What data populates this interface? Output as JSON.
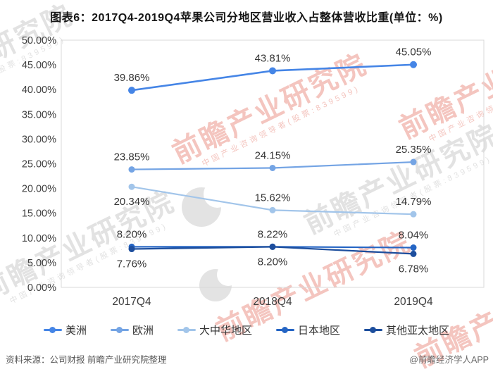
{
  "page": {
    "footer_left": "资料来源：公司财报 前瞻产业研究院整理",
    "footer_right": "@前瞻经济学人APP"
  },
  "watermark": {
    "main": "前瞻产业研究院",
    "sub": "中国产业咨询领导者(股票:839599)"
  },
  "chart_data": {
    "type": "line",
    "title": "图表6：2017Q4-2019Q4苹果公司分地区营业收入占整体营收比重(单位：%)",
    "x_categories": [
      "2017Q4",
      "2018Q4",
      "2019Q4"
    ],
    "y_axis": {
      "min": 0,
      "max": 50,
      "ticks": [
        "50.00%",
        "45.00%",
        "40.00%",
        "35.00%",
        "30.00%",
        "25.00%",
        "20.00%",
        "15.00%",
        "10.00%",
        "5.00%",
        "0.00%"
      ]
    },
    "grid": false,
    "legend_position": "bottom",
    "plot_border_color": "#d8d8d8",
    "series": [
      {
        "name": "美洲",
        "color": "#4585e6",
        "values": [
          39.86,
          43.81,
          45.05
        ],
        "labels": [
          "39.86%",
          "43.81%",
          "45.05%"
        ],
        "label_side": [
          "above",
          "above",
          "above"
        ]
      },
      {
        "name": "欧洲",
        "color": "#74a4e4",
        "values": [
          23.85,
          24.15,
          25.35
        ],
        "labels": [
          "23.85%",
          "24.15%",
          "25.35%"
        ],
        "label_side": [
          "above",
          "above",
          "above"
        ]
      },
      {
        "name": "大中华地区",
        "color": "#a2c5ea",
        "values": [
          20.34,
          15.62,
          14.79
        ],
        "labels": [
          "20.34%",
          "15.62%",
          "14.79%"
        ],
        "label_side": [
          "below",
          "above",
          "above"
        ]
      },
      {
        "name": "日本地区",
        "color": "#2565c4",
        "values": [
          8.2,
          8.22,
          8.04
        ],
        "labels": [
          "8.20%",
          "8.22%",
          "8.04%"
        ],
        "label_side": [
          "above",
          "above",
          "above"
        ]
      },
      {
        "name": "其他亚太地区",
        "color": "#1d4e9d",
        "values": [
          7.76,
          8.2,
          6.78
        ],
        "labels": [
          "7.76%",
          "8.20%",
          "6.78%"
        ],
        "label_side": [
          "below",
          "below",
          "below"
        ]
      }
    ]
  }
}
